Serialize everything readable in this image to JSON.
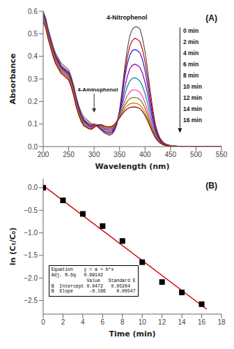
{
  "chart_data": [
    {
      "type": "line",
      "title": "(A)",
      "x_label": "Wavelength (nm)",
      "y_label": "Absorbance",
      "x": [
        200,
        205,
        210,
        215,
        220,
        225,
        230,
        235,
        240,
        245,
        250,
        255,
        260,
        265,
        270,
        275,
        280,
        285,
        290,
        295,
        300,
        305,
        310,
        315,
        320,
        325,
        330,
        335,
        340,
        345,
        350,
        355,
        360,
        365,
        370,
        375,
        380,
        385,
        390,
        395,
        400,
        405,
        410,
        415,
        420,
        425,
        430,
        435,
        440,
        445,
        450,
        455,
        460,
        465,
        470,
        475,
        480,
        485,
        490,
        495,
        500,
        505,
        510,
        515,
        520,
        525,
        530,
        535,
        540,
        545,
        550
      ],
      "series": [
        {
          "name": "0 min",
          "color": "#555555",
          "values": [
            0.6,
            0.57,
            0.52,
            0.48,
            0.44,
            0.41,
            0.39,
            0.37,
            0.36,
            0.35,
            0.34,
            0.31,
            0.27,
            0.22,
            0.18,
            0.15,
            0.13,
            0.12,
            0.11,
            0.1,
            0.1,
            0.09,
            0.08,
            0.07,
            0.06,
            0.055,
            0.05,
            0.055,
            0.07,
            0.1,
            0.16,
            0.25,
            0.35,
            0.43,
            0.49,
            0.52,
            0.53,
            0.53,
            0.52,
            0.48,
            0.42,
            0.34,
            0.25,
            0.17,
            0.1,
            0.06,
            0.035,
            0.02,
            0.012,
            0.008,
            0.005,
            0.003,
            0.002,
            0.001,
            0.001,
            0.001,
            0.001,
            0.001,
            0.001,
            0.001,
            0.001,
            0.001,
            0.001,
            0.001,
            0.001,
            0.001,
            0.001,
            0.001,
            0.001,
            0.001,
            0.001
          ]
        },
        {
          "name": "2 min",
          "color": "#cc0000",
          "values": [
            0.59,
            0.56,
            0.51,
            0.47,
            0.43,
            0.4,
            0.38,
            0.36,
            0.35,
            0.34,
            0.33,
            0.3,
            0.26,
            0.21,
            0.17,
            0.14,
            0.12,
            0.11,
            0.1,
            0.095,
            0.1,
            0.095,
            0.085,
            0.075,
            0.065,
            0.06,
            0.055,
            0.06,
            0.075,
            0.105,
            0.155,
            0.235,
            0.325,
            0.395,
            0.445,
            0.47,
            0.48,
            0.475,
            0.465,
            0.43,
            0.375,
            0.305,
            0.225,
            0.155,
            0.095,
            0.055,
            0.032,
            0.018,
            0.011,
            0.007,
            0.004,
            0.003,
            0.002,
            0.001,
            0.001,
            0.001,
            0.001,
            0.001,
            0.001,
            0.001,
            0.001,
            0.001,
            0.001,
            0.001,
            0.001,
            0.001,
            0.001,
            0.001,
            0.001,
            0.001,
            0.001
          ]
        },
        {
          "name": "4 min",
          "color": "#2222cc",
          "values": [
            0.585,
            0.555,
            0.505,
            0.465,
            0.425,
            0.395,
            0.375,
            0.355,
            0.345,
            0.335,
            0.325,
            0.295,
            0.255,
            0.205,
            0.165,
            0.135,
            0.115,
            0.105,
            0.095,
            0.09,
            0.095,
            0.095,
            0.09,
            0.08,
            0.07,
            0.065,
            0.062,
            0.065,
            0.08,
            0.11,
            0.155,
            0.225,
            0.305,
            0.365,
            0.405,
            0.425,
            0.43,
            0.425,
            0.415,
            0.385,
            0.335,
            0.27,
            0.2,
            0.135,
            0.082,
            0.047,
            0.027,
            0.016,
            0.009,
            0.006,
            0.004,
            0.002,
            0.002,
            0.001,
            0.001,
            0.001,
            0.001,
            0.001,
            0.001,
            0.001,
            0.001,
            0.001,
            0.001,
            0.001,
            0.001,
            0.001,
            0.001,
            0.001,
            0.001,
            0.001,
            0.001
          ]
        },
        {
          "name": "6 min",
          "color": "#8800aa",
          "values": [
            0.58,
            0.55,
            0.5,
            0.46,
            0.42,
            0.39,
            0.37,
            0.35,
            0.34,
            0.33,
            0.32,
            0.29,
            0.25,
            0.2,
            0.16,
            0.13,
            0.11,
            0.1,
            0.09,
            0.088,
            0.095,
            0.098,
            0.095,
            0.088,
            0.078,
            0.072,
            0.068,
            0.072,
            0.086,
            0.112,
            0.148,
            0.2,
            0.26,
            0.31,
            0.345,
            0.36,
            0.365,
            0.36,
            0.35,
            0.325,
            0.285,
            0.232,
            0.172,
            0.117,
            0.072,
            0.041,
            0.024,
            0.014,
            0.008,
            0.005,
            0.003,
            0.002,
            0.001,
            0.001,
            0.001,
            0.001,
            0.001,
            0.001,
            0.001,
            0.001,
            0.001,
            0.001,
            0.001,
            0.001,
            0.001,
            0.001,
            0.001,
            0.001,
            0.001,
            0.001,
            0.001
          ]
        },
        {
          "name": "8 min",
          "color": "#008888",
          "values": [
            0.575,
            0.545,
            0.495,
            0.455,
            0.415,
            0.385,
            0.365,
            0.345,
            0.335,
            0.325,
            0.315,
            0.285,
            0.245,
            0.195,
            0.156,
            0.126,
            0.107,
            0.097,
            0.088,
            0.085,
            0.092,
            0.097,
            0.095,
            0.09,
            0.082,
            0.077,
            0.074,
            0.078,
            0.09,
            0.112,
            0.143,
            0.183,
            0.228,
            0.265,
            0.29,
            0.302,
            0.305,
            0.3,
            0.29,
            0.268,
            0.235,
            0.192,
            0.143,
            0.097,
            0.06,
            0.035,
            0.02,
            0.012,
            0.007,
            0.004,
            0.003,
            0.002,
            0.001,
            0.001,
            0.001,
            0.001,
            0.001,
            0.001,
            0.001,
            0.001,
            0.001,
            0.001,
            0.001,
            0.001,
            0.001,
            0.001,
            0.001,
            0.001,
            0.001,
            0.001,
            0.001
          ]
        },
        {
          "name": "10 min",
          "color": "#ff44aa",
          "values": [
            0.57,
            0.54,
            0.49,
            0.45,
            0.41,
            0.38,
            0.36,
            0.34,
            0.33,
            0.32,
            0.31,
            0.28,
            0.24,
            0.19,
            0.15,
            0.12,
            0.1,
            0.093,
            0.085,
            0.082,
            0.09,
            0.096,
            0.097,
            0.092,
            0.085,
            0.08,
            0.077,
            0.08,
            0.092,
            0.112,
            0.138,
            0.168,
            0.2,
            0.225,
            0.242,
            0.25,
            0.252,
            0.248,
            0.24,
            0.222,
            0.195,
            0.16,
            0.12,
            0.083,
            0.052,
            0.031,
            0.018,
            0.011,
            0.007,
            0.004,
            0.003,
            0.002,
            0.001,
            0.001,
            0.001,
            0.001,
            0.001,
            0.001,
            0.001,
            0.001,
            0.001,
            0.001,
            0.001,
            0.001,
            0.001,
            0.001,
            0.001,
            0.001,
            0.001,
            0.001,
            0.001
          ]
        },
        {
          "name": "12 min",
          "color": "#777700",
          "values": [
            0.565,
            0.535,
            0.485,
            0.445,
            0.405,
            0.375,
            0.355,
            0.335,
            0.325,
            0.315,
            0.305,
            0.275,
            0.235,
            0.185,
            0.147,
            0.117,
            0.098,
            0.089,
            0.082,
            0.08,
            0.088,
            0.095,
            0.097,
            0.094,
            0.088,
            0.084,
            0.081,
            0.084,
            0.094,
            0.112,
            0.134,
            0.158,
            0.182,
            0.2,
            0.212,
            0.217,
            0.218,
            0.215,
            0.208,
            0.193,
            0.17,
            0.14,
            0.106,
            0.074,
            0.047,
            0.028,
            0.017,
            0.01,
            0.006,
            0.004,
            0.002,
            0.002,
            0.001,
            0.001,
            0.001,
            0.001,
            0.001,
            0.001,
            0.001,
            0.001,
            0.001,
            0.001,
            0.001,
            0.001,
            0.001,
            0.001,
            0.001,
            0.001,
            0.001,
            0.001,
            0.001
          ]
        },
        {
          "name": "14 min",
          "color": "#dd7700",
          "values": [
            0.56,
            0.53,
            0.48,
            0.44,
            0.4,
            0.37,
            0.35,
            0.33,
            0.32,
            0.31,
            0.3,
            0.27,
            0.23,
            0.18,
            0.143,
            0.113,
            0.095,
            0.087,
            0.08,
            0.078,
            0.086,
            0.094,
            0.097,
            0.095,
            0.09,
            0.086,
            0.084,
            0.087,
            0.096,
            0.112,
            0.13,
            0.15,
            0.168,
            0.181,
            0.189,
            0.192,
            0.193,
            0.19,
            0.184,
            0.17,
            0.15,
            0.124,
            0.095,
            0.066,
            0.043,
            0.026,
            0.016,
            0.009,
            0.006,
            0.003,
            0.002,
            0.001,
            0.001,
            0.001,
            0.001,
            0.001,
            0.001,
            0.001,
            0.001,
            0.001,
            0.001,
            0.001,
            0.001,
            0.001,
            0.001,
            0.001,
            0.001,
            0.001,
            0.001,
            0.001,
            0.001
          ]
        },
        {
          "name": "16 min",
          "color": "#880000",
          "values": [
            0.555,
            0.525,
            0.475,
            0.435,
            0.395,
            0.365,
            0.345,
            0.325,
            0.315,
            0.305,
            0.295,
            0.265,
            0.225,
            0.175,
            0.138,
            0.11,
            0.092,
            0.085,
            0.078,
            0.077,
            0.085,
            0.093,
            0.097,
            0.096,
            0.092,
            0.089,
            0.087,
            0.09,
            0.098,
            0.112,
            0.127,
            0.143,
            0.157,
            0.167,
            0.173,
            0.175,
            0.176,
            0.173,
            0.168,
            0.156,
            0.138,
            0.115,
            0.088,
            0.062,
            0.04,
            0.025,
            0.015,
            0.009,
            0.005,
            0.003,
            0.002,
            0.001,
            0.001,
            0.001,
            0.001,
            0.001,
            0.001,
            0.001,
            0.001,
            0.001,
            0.001,
            0.001,
            0.001,
            0.001,
            0.001,
            0.001,
            0.001,
            0.001,
            0.001,
            0.001,
            0.001
          ]
        }
      ],
      "xlim": [
        200,
        550
      ],
      "ylim": [
        0.0,
        0.6
      ],
      "xticks": [
        200,
        250,
        300,
        350,
        400,
        450,
        500,
        550
      ],
      "yticks": [
        {
          "value": 0.0,
          "label": "0.0"
        },
        0.1,
        0.2,
        0.3,
        0.4,
        0.5,
        0.6
      ],
      "grid": false,
      "legend": "top right",
      "annotations": [
        {
          "text": "4-Nitrophenol"
        },
        {
          "text": "4-Aminophenol",
          "x": 300,
          "y": 0.148
        }
      ]
    },
    {
      "type": "scatter",
      "title": "(B)",
      "x_label": "Time (min)",
      "y_label": "ln (Cₜ/C₀)",
      "series": [
        {
          "type": "line",
          "color": "#cc0000",
          "x": [
            0,
            16.5
          ],
          "values": [
            0.0472,
            -2.6918
          ]
        },
        {
          "type": "scatter",
          "color": "#000000",
          "marker": "square",
          "x": [
            0,
            2,
            4,
            6,
            8,
            10,
            12,
            14,
            16
          ],
          "values": [
            0.0,
            -0.28,
            -0.58,
            -0.85,
            -1.18,
            -1.65,
            -2.09,
            -2.32,
            -2.58
          ]
        }
      ],
      "xlim": [
        0,
        18
      ],
      "ylim": [
        -2.8,
        0.2
      ],
      "xticks": [
        0,
        2,
        4,
        6,
        8,
        10,
        12,
        14,
        16,
        18
      ],
      "yticks": [
        {
          "value": 0.0,
          "label": "0.0"
        },
        {
          "value": -0.5,
          "label": "−0.5"
        },
        {
          "value": -1.0,
          "label": "−1.0"
        },
        {
          "value": -1.5,
          "label": "−1.5"
        },
        {
          "value": -2.0,
          "label": "−2.0"
        },
        {
          "value": -2.5,
          "label": "−2.5"
        }
      ],
      "grid": false,
      "annotations": [
        {
          "text": "Equation    y = a + b*x\nAdj. R-Sq   0.99142\n             Value   Standard E\nB  Intercept 0.0472   0.05204\nB  Slope      -0.166    0.00547"
        }
      ]
    }
  ]
}
